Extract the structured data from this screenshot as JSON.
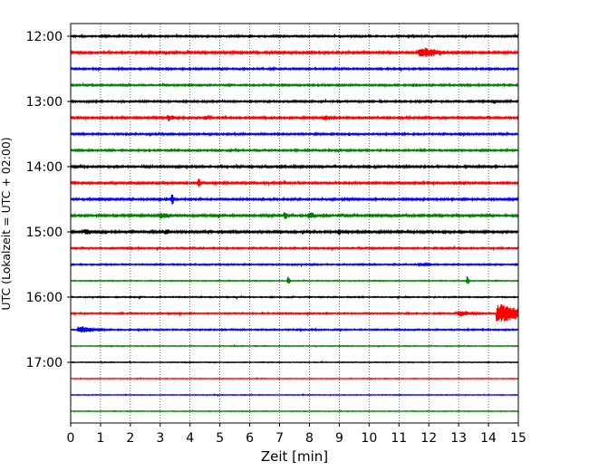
{
  "chart_data": {
    "type": "line",
    "title": "",
    "xlabel": "Zeit  [min]",
    "ylabel": "UTC (Lokalzeit = UTC + 02:00)",
    "xlim": [
      0,
      15
    ],
    "x_ticks": [
      "0",
      "1",
      "2",
      "3",
      "4",
      "5",
      "6",
      "7",
      "8",
      "9",
      "10",
      "11",
      "12",
      "13",
      "14",
      "15"
    ],
    "y_tick_labels": [
      "12:00",
      "13:00",
      "14:00",
      "15:00",
      "16:00",
      "17:00"
    ],
    "grid": "vertical dotted lines at each minute",
    "trace_interval_min": 15,
    "first_trace_start": "12:00",
    "trace_colors": [
      "#000000",
      "#ff0000",
      "#0000ff",
      "#008000"
    ],
    "traces": [
      {
        "start": "12:00",
        "noise": 0.8
      },
      {
        "start": "12:15",
        "noise": 1.0,
        "events": [
          {
            "t": 11.7,
            "amp": 4.2,
            "dur": 0.8
          }
        ]
      },
      {
        "start": "12:30",
        "noise": 0.8
      },
      {
        "start": "12:45",
        "noise": 0.8
      },
      {
        "start": "13:00",
        "noise": 0.8,
        "events": [
          {
            "t": 14.2,
            "amp": 1.8,
            "dur": 0.1
          }
        ]
      },
      {
        "start": "13:15",
        "noise": 0.9,
        "events": [
          {
            "t": 3.3,
            "amp": 2.8,
            "dur": 0.2
          },
          {
            "t": 4.5,
            "amp": 2.0,
            "dur": 0.15
          },
          {
            "t": 8.5,
            "amp": 2.0,
            "dur": 0.2
          }
        ]
      },
      {
        "start": "13:30",
        "noise": 0.8
      },
      {
        "start": "13:45",
        "noise": 0.8
      },
      {
        "start": "14:00",
        "noise": 0.9
      },
      {
        "start": "14:15",
        "noise": 0.9,
        "events": [
          {
            "t": 4.3,
            "amp": 4.6,
            "dur": 0.05
          }
        ]
      },
      {
        "start": "14:30",
        "noise": 0.9,
        "events": [
          {
            "t": 3.4,
            "amp": 6.5,
            "dur": 0.05
          }
        ]
      },
      {
        "start": "14:45",
        "noise": 1.0,
        "events": [
          {
            "t": 3.0,
            "amp": 2.2,
            "dur": 0.5
          },
          {
            "t": 7.2,
            "amp": 4.0,
            "dur": 0.08
          },
          {
            "t": 8.0,
            "amp": 3.0,
            "dur": 0.25
          }
        ]
      },
      {
        "start": "15:00",
        "noise": 1.0,
        "events": [
          {
            "t": 0.5,
            "amp": 2.0,
            "dur": 0.3
          },
          {
            "t": 3.2,
            "amp": 2.0,
            "dur": 0.2
          },
          {
            "t": 9.0,
            "amp": 3.8,
            "dur": 0.05
          }
        ]
      },
      {
        "start": "15:15",
        "noise": 0.7
      },
      {
        "start": "15:30",
        "noise": 0.6,
        "events": [
          {
            "t": 11.7,
            "amp": 1.5,
            "dur": 0.3
          }
        ]
      },
      {
        "start": "15:45",
        "noise": 0.4,
        "events": [
          {
            "t": 7.3,
            "amp": 5.0,
            "dur": 0.05
          },
          {
            "t": 13.3,
            "amp": 5.5,
            "dur": 0.05
          }
        ]
      },
      {
        "start": "16:00",
        "noise": 0.5
      },
      {
        "start": "16:15",
        "noise": 0.6,
        "events": [
          {
            "t": 14.3,
            "amp": 9.5,
            "dur": 1.0
          },
          {
            "t": 13.0,
            "amp": 2.5,
            "dur": 0.5
          }
        ]
      },
      {
        "start": "16:30",
        "noise": 0.6,
        "events": [
          {
            "t": 0.3,
            "amp": 3.0,
            "dur": 0.6
          }
        ]
      },
      {
        "start": "16:45",
        "noise": 0.35
      },
      {
        "start": "17:00",
        "noise": 0.35
      },
      {
        "start": "17:15",
        "noise": 0.3
      },
      {
        "start": "17:30",
        "noise": 0.3
      },
      {
        "start": "17:45",
        "noise": 0.3
      }
    ]
  }
}
